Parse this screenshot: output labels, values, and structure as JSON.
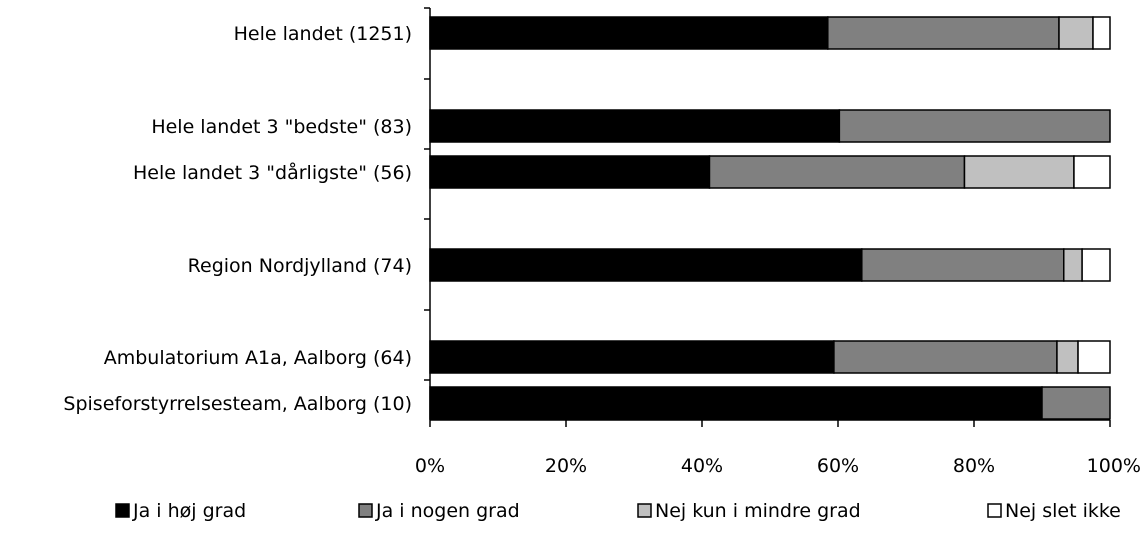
{
  "chart_data": {
    "type": "bar",
    "orientation": "horizontal",
    "stacked": true,
    "normalized_percent": true,
    "title": "",
    "xlabel": "",
    "ylabel": "",
    "xlim": [
      0,
      100
    ],
    "x_tick_labels": [
      "0%",
      "20%",
      "40%",
      "60%",
      "80%",
      "100%"
    ],
    "grid": false,
    "legend_position": "bottom",
    "categories": [
      "Hele landet  (1251)",
      "Hele landet 3 \"bedste\" (83)",
      "Hele landet 3 \"dårligste\" (56)",
      "Region Nordjylland (74)",
      "Ambulatorium A1a, Aalborg (64)",
      "Spiseforstyrrelsesteam, Aalborg (10)"
    ],
    "series": [
      {
        "name": "Ja i høj grad",
        "color": "#000000",
        "values": [
          58.5,
          60.2,
          41.1,
          63.5,
          59.4,
          90.0
        ]
      },
      {
        "name": "Ja i nogen grad",
        "color": "#808080",
        "values": [
          34.0,
          39.8,
          37.5,
          29.7,
          32.8,
          10.0
        ]
      },
      {
        "name": "Nej kun i mindre grad",
        "color": "#c0c0c0",
        "values": [
          5.0,
          0.0,
          16.1,
          2.7,
          3.1,
          0.0
        ]
      },
      {
        "name": "Nej slet ikke",
        "color": "#ffffff",
        "values": [
          2.5,
          0.0,
          5.3,
          4.1,
          4.7,
          0.0
        ]
      }
    ]
  }
}
